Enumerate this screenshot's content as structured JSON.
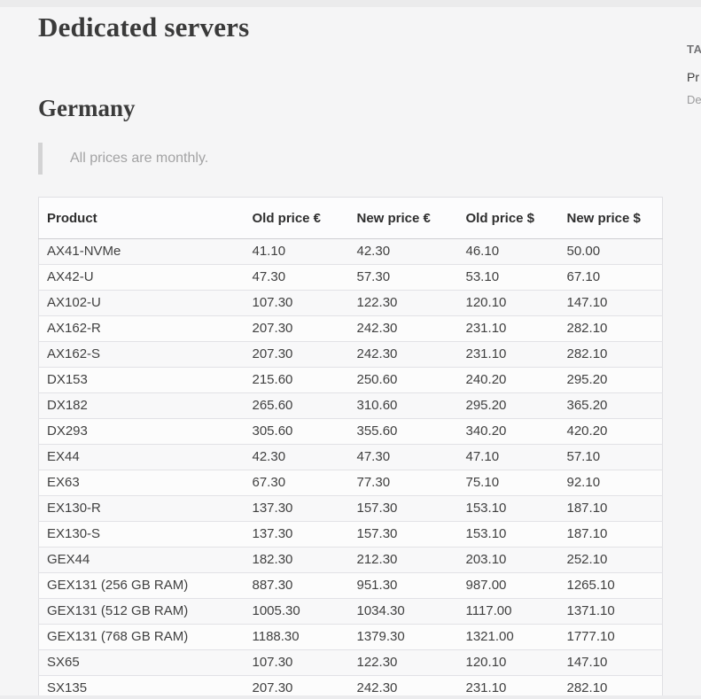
{
  "page": {
    "title": "Dedicated servers",
    "section_heading": "Germany",
    "note": "All prices are monthly."
  },
  "toc": {
    "label": "TA",
    "items": [
      {
        "label": "Pr",
        "style": "primary"
      },
      {
        "label": "De",
        "style": "secondary"
      }
    ]
  },
  "table": {
    "columns": [
      "Product",
      "Old price €",
      "New price €",
      "Old price $",
      "New price $"
    ],
    "rows": [
      [
        "AX41-NVMe",
        "41.10",
        "42.30",
        "46.10",
        "50.00"
      ],
      [
        "AX42-U",
        "47.30",
        "57.30",
        "53.10",
        "67.10"
      ],
      [
        "AX102-U",
        "107.30",
        "122.30",
        "120.10",
        "147.10"
      ],
      [
        "AX162-R",
        "207.30",
        "242.30",
        "231.10",
        "282.10"
      ],
      [
        "AX162-S",
        "207.30",
        "242.30",
        "231.10",
        "282.10"
      ],
      [
        "DX153",
        "215.60",
        "250.60",
        "240.20",
        "295.20"
      ],
      [
        "DX182",
        "265.60",
        "310.60",
        "295.20",
        "365.20"
      ],
      [
        "DX293",
        "305.60",
        "355.60",
        "340.20",
        "420.20"
      ],
      [
        "EX44",
        "42.30",
        "47.30",
        "47.10",
        "57.10"
      ],
      [
        "EX63",
        "67.30",
        "77.30",
        "75.10",
        "92.10"
      ],
      [
        "EX130-R",
        "137.30",
        "157.30",
        "153.10",
        "187.10"
      ],
      [
        "EX130-S",
        "137.30",
        "157.30",
        "153.10",
        "187.10"
      ],
      [
        "GEX44",
        "182.30",
        "212.30",
        "203.10",
        "252.10"
      ],
      [
        "GEX131 (256 GB RAM)",
        "887.30",
        "951.30",
        "987.00",
        "1265.10"
      ],
      [
        "GEX131 (512 GB RAM)",
        "1005.30",
        "1034.30",
        "1117.00",
        "1371.10"
      ],
      [
        "GEX131 (768 GB RAM)",
        "1188.30",
        "1379.30",
        "1321.00",
        "1777.10"
      ],
      [
        "SX65",
        "107.30",
        "122.30",
        "120.10",
        "147.10"
      ],
      [
        "SX135",
        "207.30",
        "242.30",
        "231.10",
        "282.10"
      ]
    ]
  },
  "colors": {
    "page_background": "#f5f5f6",
    "table_background": "#fafafa",
    "heading_text": "#3a3a3a",
    "body_text": "#404040",
    "muted_text": "#a3a3a4",
    "note_bar": "#d3d3d4",
    "row_border": "#e2e2e6"
  }
}
